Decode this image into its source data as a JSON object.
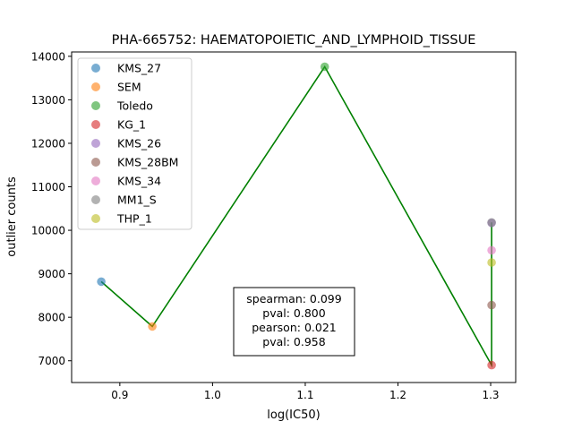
{
  "chart_data": {
    "type": "scatter",
    "title": "PHA-665752: HAEMATOPOIETIC_AND_LYMPHOID_TISSUE",
    "xlabel": "log(IC50)",
    "ylabel": "outlier counts",
    "xlim": [
      0.848,
      1.327
    ],
    "ylim": [
      6500,
      14100
    ],
    "xticks": [
      0.9,
      1.0,
      1.1,
      1.2,
      1.3
    ],
    "xtick_labels": [
      "0.9",
      "1.0",
      "1.1",
      "1.2",
      "1.3"
    ],
    "yticks": [
      7000,
      8000,
      9000,
      10000,
      11000,
      12000,
      13000,
      14000
    ],
    "ytick_labels": [
      "7000",
      "8000",
      "9000",
      "10000",
      "11000",
      "12000",
      "13000",
      "14000"
    ],
    "grid": false,
    "legend_position": "upper-left",
    "series": [
      {
        "name": "KMS_27",
        "color": "#1f77b4",
        "x": 0.88,
        "y": 8820
      },
      {
        "name": "SEM",
        "color": "#ff7f0e",
        "x": 0.935,
        "y": 7790
      },
      {
        "name": "Toledo",
        "color": "#2ca02c",
        "x": 1.121,
        "y": 13760
      },
      {
        "name": "KG_1",
        "color": "#d62728",
        "x": 1.301,
        "y": 6900
      },
      {
        "name": "KMS_26",
        "color": "#9467bd",
        "x": 1.301,
        "y": 10170
      },
      {
        "name": "KMS_28BM",
        "color": "#8c564b",
        "x": 1.301,
        "y": 8280
      },
      {
        "name": "KMS_34",
        "color": "#e377c2",
        "x": 1.301,
        "y": 9540
      },
      {
        "name": "MM1_S",
        "color": "#7f7f7f",
        "x": 1.301,
        "y": 10180
      },
      {
        "name": "THP_1",
        "color": "#bcbd22",
        "x": 1.301,
        "y": 9260
      }
    ],
    "fit_line": {
      "color": "#008000",
      "points": [
        [
          0.88,
          8820
        ],
        [
          0.935,
          7790
        ],
        [
          1.121,
          13760
        ],
        [
          1.301,
          6900
        ],
        [
          1.301,
          10170
        ],
        [
          1.301,
          8280
        ],
        [
          1.301,
          9540
        ],
        [
          1.301,
          10180
        ],
        [
          1.301,
          9260
        ]
      ]
    },
    "annotation": {
      "lines": [
        "spearman: 0.099",
        "pval: 0.800",
        "pearson: 0.021",
        "pval: 0.958"
      ]
    }
  }
}
